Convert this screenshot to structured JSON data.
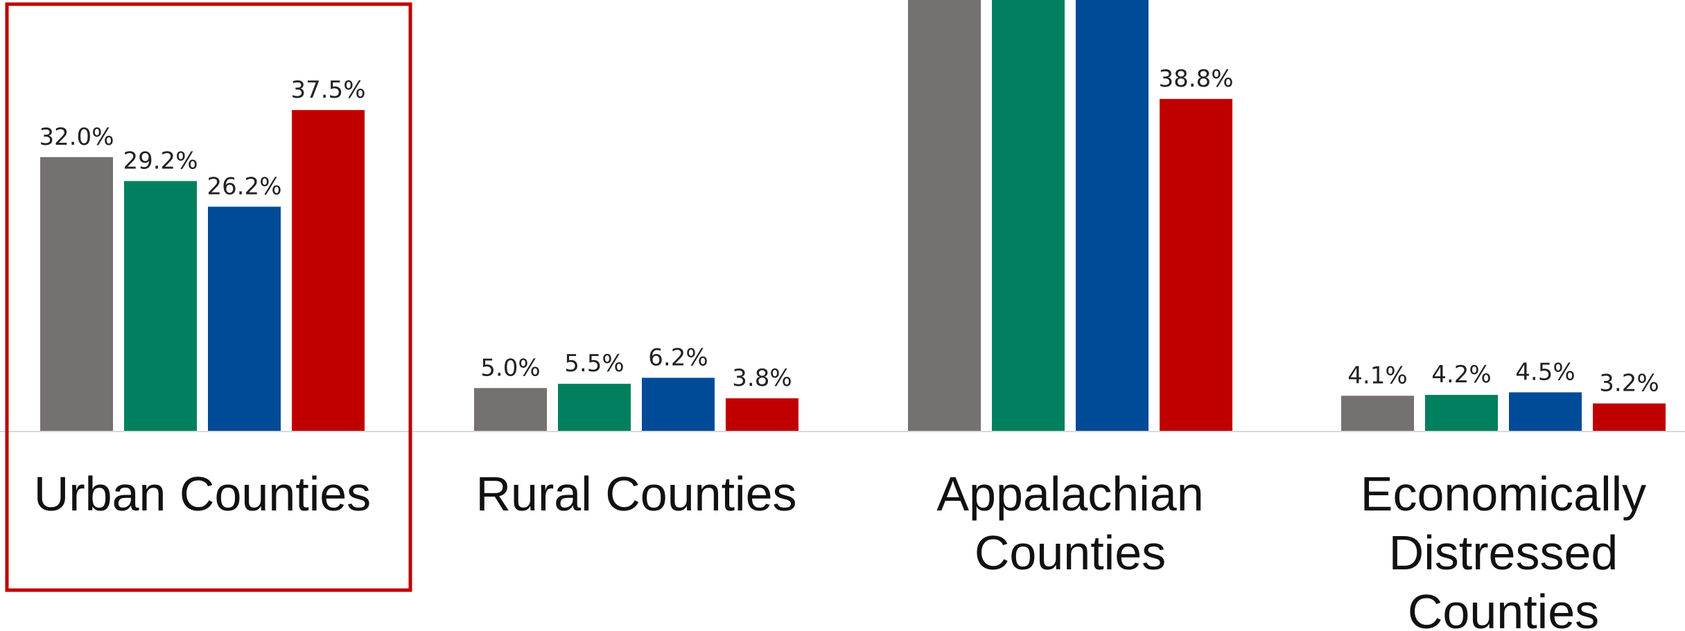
{
  "chart_data": {
    "type": "bar",
    "categories": [
      "Urban Counties",
      "Rural Counties",
      "Appalachian Counties",
      "Economically Distressed Counties"
    ],
    "category_lines": [
      [
        "Urban Counties"
      ],
      [
        "Rural Counties"
      ],
      [
        "Appalachian",
        "Counties"
      ],
      [
        "Economically",
        "Distressed",
        "Counties"
      ]
    ],
    "series_colors": [
      "#767171",
      "#00805E",
      "#004B98",
      "#C00000"
    ],
    "values": [
      [
        32.0,
        29.2,
        26.2,
        37.5
      ],
      [
        5.0,
        5.5,
        6.2,
        3.8
      ],
      [
        null,
        null,
        null,
        38.8
      ],
      [
        4.1,
        4.2,
        4.5,
        3.2
      ]
    ],
    "value_labels": [
      [
        "32.0%",
        "29.2%",
        "26.2%",
        "37.5%"
      ],
      [
        "5.0%",
        "5.5%",
        "6.2%",
        "3.8%"
      ],
      [
        "",
        "",
        "",
        "38.8%"
      ],
      [
        "4.1%",
        "4.2%",
        "4.5%",
        "3.2%"
      ]
    ],
    "note": "Appalachian bars for first three series extend beyond the visible top edge; values not shown.",
    "highlight": {
      "category": "Urban Counties",
      "color": "#C00000"
    },
    "baseline_color": "#D9D9D9"
  }
}
